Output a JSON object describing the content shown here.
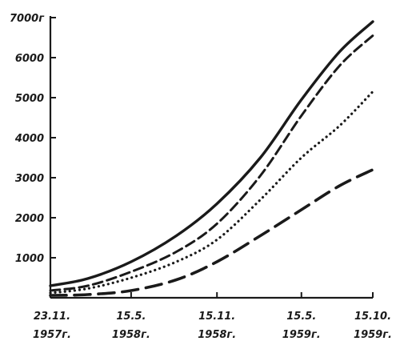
{
  "chart_data": {
    "type": "line",
    "title": "",
    "xlabel": "",
    "ylabel": "",
    "ylim": [
      0,
      7000
    ],
    "grid": false,
    "legend": "none",
    "x_ticks": [
      {
        "line1": "23.11.",
        "line2": "1957г.",
        "days": 0
      },
      {
        "line1": "15.5.",
        "line2": "1958г.",
        "days": 173
      },
      {
        "line1": "15.11.",
        "line2": "1958г.",
        "days": 357
      },
      {
        "line1": "15.5.",
        "line2": "1959г.",
        "days": 538
      },
      {
        "line1": "15.10.",
        "line2": "1959г.",
        "days": 691
      }
    ],
    "y_ticks": [
      {
        "value": 1000,
        "label": "1000"
      },
      {
        "value": 2000,
        "label": "2000"
      },
      {
        "value": 3000,
        "label": "3000"
      },
      {
        "value": 4000,
        "label": "4000"
      },
      {
        "value": 5000,
        "label": "5000"
      },
      {
        "value": 6000,
        "label": "6000"
      },
      {
        "value": 7000,
        "label": "7000г"
      }
    ],
    "series": [
      {
        "style": "solid",
        "points": [
          [
            0,
            300
          ],
          [
            80,
            480
          ],
          [
            173,
            900
          ],
          [
            270,
            1550
          ],
          [
            357,
            2350
          ],
          [
            450,
            3500
          ],
          [
            538,
            4950
          ],
          [
            620,
            6150
          ],
          [
            691,
            6900
          ]
        ]
      },
      {
        "style": "dashed",
        "points": [
          [
            0,
            180
          ],
          [
            80,
            300
          ],
          [
            173,
            650
          ],
          [
            270,
            1150
          ],
          [
            357,
            1850
          ],
          [
            450,
            3050
          ],
          [
            538,
            4550
          ],
          [
            620,
            5800
          ],
          [
            691,
            6550
          ]
        ]
      },
      {
        "style": "dotted",
        "points": [
          [
            0,
            120
          ],
          [
            80,
            230
          ],
          [
            173,
            500
          ],
          [
            270,
            900
          ],
          [
            357,
            1450
          ],
          [
            450,
            2450
          ],
          [
            538,
            3500
          ],
          [
            620,
            4300
          ],
          [
            691,
            5150
          ]
        ]
      },
      {
        "style": "long-dashed",
        "points": [
          [
            0,
            60
          ],
          [
            80,
            80
          ],
          [
            173,
            180
          ],
          [
            270,
            450
          ],
          [
            357,
            900
          ],
          [
            450,
            1550
          ],
          [
            538,
            2200
          ],
          [
            620,
            2800
          ],
          [
            691,
            3200
          ]
        ]
      }
    ]
  }
}
